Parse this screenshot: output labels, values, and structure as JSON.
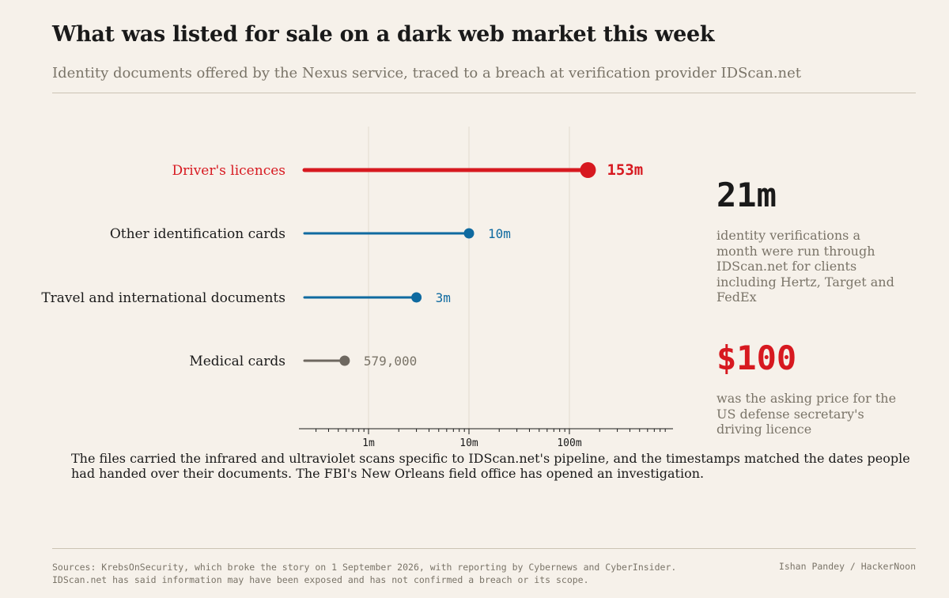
{
  "header": {
    "title": "What was listed for sale on a dark web market this week",
    "subtitle": "Identity documents offered by the Nexus service, traced to a breach at verification provider IDScan.net"
  },
  "chart_data": {
    "type": "lollipop",
    "scale": "log",
    "categories": [
      "Driver's licences",
      "Other identification cards",
      "Travel and international documents",
      "Medical cards"
    ],
    "values": [
      153000000,
      10000000,
      3000000,
      579000
    ],
    "value_labels": [
      "153m",
      "10m",
      "3m",
      "579,000"
    ],
    "colors": [
      "#d71920",
      "#0f6aa0",
      "#0f6aa0",
      "#6e6860"
    ],
    "xlim": [
      100000,
      1000000000
    ],
    "xticks": [
      1000000,
      10000000,
      100000000
    ],
    "xtick_labels": [
      "1m",
      "10m",
      "100m"
    ],
    "grid": true
  },
  "stats": [
    {
      "value": "21m",
      "description": "identity verifications a month were run through IDScan.net for clients including Hertz, Target and FedEx"
    },
    {
      "value": "$100",
      "description": "was the asking price for the US defense secretary's driving licence"
    }
  ],
  "note": "The files carried the infrared and ultraviolet scans specific to IDScan.net's pipeline, and the timestamps matched the dates people had handed over their documents. The FBI's New Orleans field office has opened an investigation.",
  "footer": {
    "sources": "Sources: KrebsOnSecurity, which broke the story on 1 September 2026, with reporting by Cybernews and CyberInsider. IDScan.net has said information may have been exposed and has not confirmed a breach or its scope.",
    "credit": "Ishan Pandey / HackerNoon"
  }
}
